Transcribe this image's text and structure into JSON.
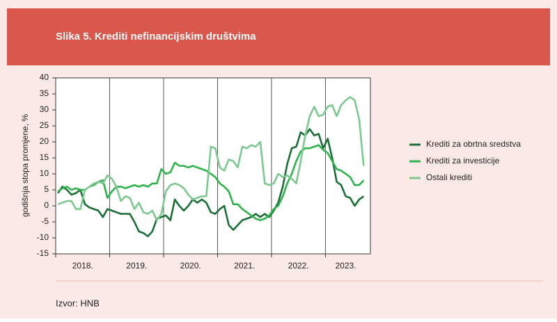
{
  "chart_data": {
    "type": "line",
    "title": "Slika 5. Krediti nefinancijskim društvima",
    "y_label": "godišnja stopa promjene, %",
    "source": "Izvor: HNB",
    "x_labels": [
      "2018.",
      "2019.",
      "2020.",
      "2021.",
      "2022.",
      "2023."
    ],
    "ylim": [
      -15,
      40
    ],
    "yticks": [
      -15,
      -10,
      -5,
      0,
      5,
      10,
      15,
      20,
      25,
      30,
      35,
      40
    ],
    "series": [
      {
        "name": "Krediti za obrtna sredstva",
        "color": "#1b6e35",
        "values": [
          4,
          6,
          5,
          3.5,
          4,
          5,
          0.5,
          -0.5,
          -1,
          -1.5,
          -3.5,
          -1,
          -1.5,
          -2,
          -2.5,
          -2.5,
          -2.5,
          -5,
          -8,
          -8.5,
          -9.5,
          -8,
          -4,
          -3.5,
          -3,
          -4.5,
          2,
          0,
          -1.5,
          0,
          2,
          1,
          2,
          1,
          -2,
          -2.5,
          -1,
          0,
          -6,
          -7.5,
          -6,
          -4.5,
          -4,
          -3.5,
          -2.5,
          -3.5,
          -2.5,
          -3.5,
          -1.5,
          1,
          6,
          13,
          18,
          18.5,
          23,
          22,
          24,
          22,
          22.5,
          18,
          21,
          15,
          7.5,
          6.5,
          3,
          2.5,
          0,
          2,
          3
        ]
      },
      {
        "name": "Krediti za investicije",
        "color": "#2fb24c",
        "values": [
          4.5,
          5.5,
          6,
          5,
          5.5,
          5,
          5,
          6,
          6.5,
          7.5,
          8,
          2.5,
          4.5,
          6,
          6,
          5.5,
          6,
          6.5,
          6,
          6.5,
          6,
          7,
          7,
          11.5,
          10,
          10.5,
          13.5,
          12.5,
          12.5,
          12,
          12.5,
          12,
          11.5,
          11,
          10,
          9,
          7,
          6,
          4.5,
          0.5,
          0.5,
          -1,
          -2,
          -3,
          -4,
          -4.5,
          -4,
          -3,
          -1,
          0,
          3,
          7,
          10,
          14,
          17,
          18,
          18,
          18.5,
          19,
          17.5,
          16.5,
          14,
          11.5,
          11,
          10,
          9,
          6.5,
          6.5,
          8
        ]
      },
      {
        "name": "Ostali krediti",
        "color": "#7dc890",
        "values": [
          0.5,
          1,
          1.5,
          1.5,
          -1,
          -1,
          5,
          6,
          7,
          7.5,
          7,
          9.5,
          8.5,
          6,
          1.5,
          3,
          2.5,
          -1,
          1,
          -2,
          -2.5,
          -1.5,
          -4.5,
          -2.5,
          4.5,
          6.5,
          7,
          6.5,
          5.5,
          3.5,
          2,
          2.5,
          3,
          3,
          18.5,
          18,
          12,
          11,
          14.5,
          14,
          12,
          18.5,
          18,
          19,
          18.5,
          20,
          7,
          6.5,
          7,
          10,
          9,
          9.5,
          8.5,
          7,
          14,
          22,
          28,
          31,
          28,
          28.5,
          31,
          31.5,
          28,
          31.5,
          33,
          34,
          33,
          27,
          12.5
        ]
      }
    ]
  }
}
